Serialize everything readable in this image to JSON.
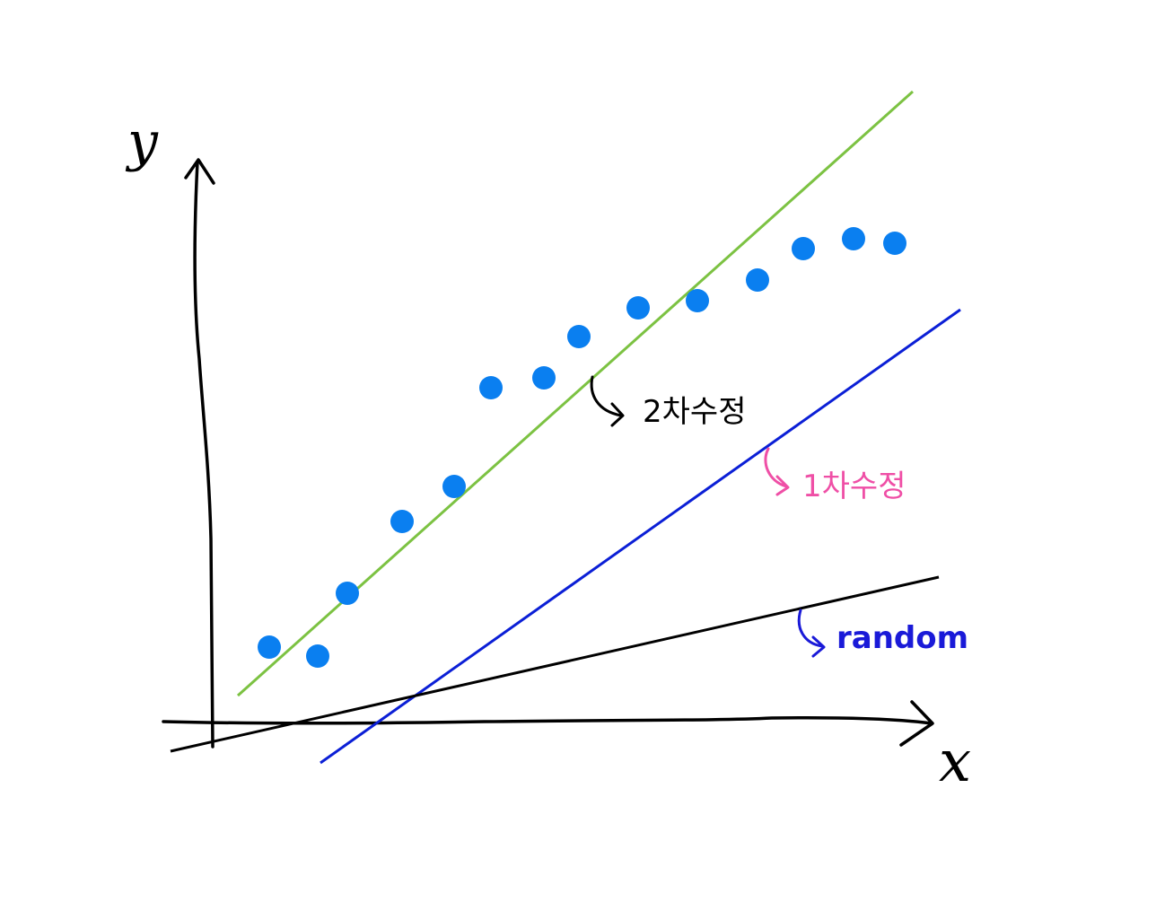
{
  "axes": {
    "y_label": "y",
    "x_label": "x"
  },
  "annotations": {
    "second_order_fit": "2차수정",
    "first_order_fit": "1차수정",
    "random_line": "random"
  },
  "colors": {
    "background": "#ffffff",
    "axis": "#000000",
    "points": "#0a7ff0",
    "second_order_line": "#7cc242",
    "first_order_line": "#0b1fd6",
    "random_line": "#000000",
    "second_order_text": "#000000",
    "first_order_text": "#ef4fa6",
    "random_text": "#1a1ad8"
  }
}
